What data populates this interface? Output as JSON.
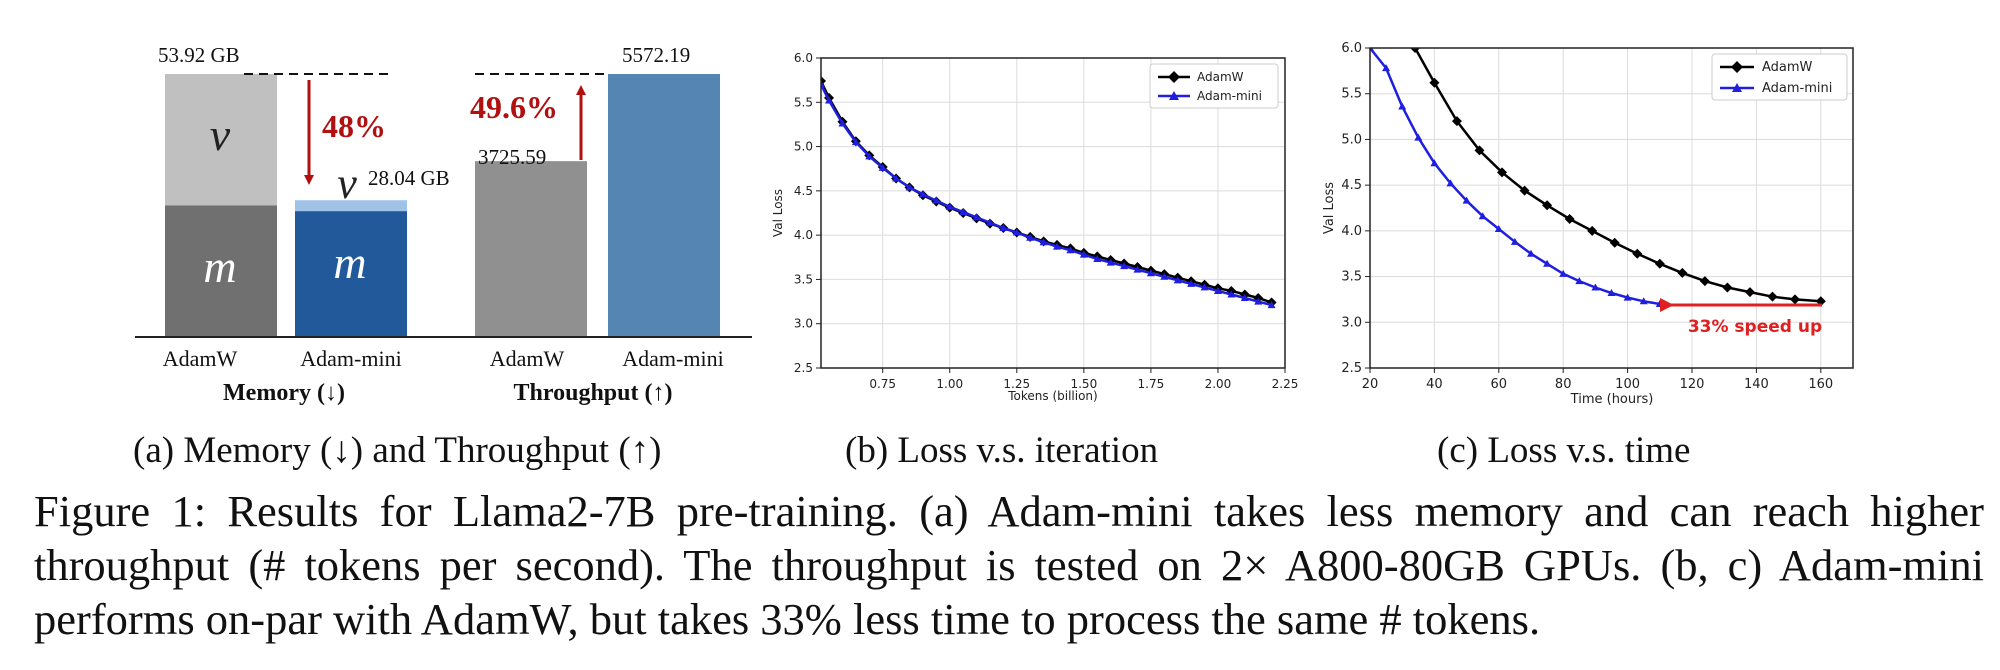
{
  "panel_a": {
    "memory": {
      "adamw_total_label": "53.92 GB",
      "adamini_total_label": "28.04 GB",
      "v_label": "v",
      "m_label": "m",
      "reduction_label": "48%",
      "adamw_value": 53.92,
      "adamini_value": 28.04,
      "adamw_m_fraction": 0.5,
      "adamini_v_fraction": 0.08,
      "group_label": "Memory (↓)"
    },
    "throughput": {
      "adamw_label": "3725.59",
      "adamini_label": "5572.19",
      "adamw_value": 3725.59,
      "adamini_value": 5572.19,
      "increase_label": "49.6%",
      "group_label": "Throughput (↑)"
    },
    "categories": [
      "AdamW",
      "Adam-mini",
      "AdamW",
      "Adam-mini"
    ],
    "colors": {
      "adamw_v": "#c0c0c0",
      "adamw_m": "#707070",
      "adamini_v": "#9fc3e7",
      "adamini_m": "#22599a",
      "adamw_throughput": "#909090",
      "adamini_throughput": "#5585b3",
      "arrow": "#b01010"
    }
  },
  "subcaptions": {
    "a": "(a) Memory (↓) and Throughput (↑)",
    "b": "(b) Loss v.s. iteration",
    "c": "(c) Loss v.s. time"
  },
  "caption": "Figure 1: Results for Llama2-7B pre-training. (a) Adam-mini takes less memory and can reach higher throughput (# tokens per second). The throughput is tested on 2× A800-80GB GPUs. (b, c) Adam-mini performs on-par with AdamW, but takes 33% less time to process the same # tokens.",
  "chart_data": [
    {
      "type": "line",
      "xlabel": "Tokens (billion)",
      "ylabel": "Val Loss",
      "xlim": [
        0.52,
        2.25
      ],
      "ylim": [
        2.5,
        6.0
      ],
      "xticks": [
        "0.75",
        "1.00",
        "1.25",
        "1.50",
        "1.75",
        "2.00",
        "2.25"
      ],
      "yticks": [
        "2.5",
        "3.0",
        "3.5",
        "4.0",
        "4.5",
        "5.0",
        "5.5",
        "6.0"
      ],
      "grid": true,
      "legend": "top-right",
      "series": [
        {
          "name": "AdamW",
          "color": "#000000",
          "marker": "diamond",
          "x": [
            0.52,
            0.55,
            0.6,
            0.65,
            0.7,
            0.75,
            0.8,
            0.85,
            0.9,
            0.95,
            1.0,
            1.05,
            1.1,
            1.15,
            1.2,
            1.25,
            1.3,
            1.35,
            1.4,
            1.45,
            1.5,
            1.55,
            1.6,
            1.65,
            1.7,
            1.75,
            1.8,
            1.85,
            1.9,
            1.95,
            2.0,
            2.05,
            2.1,
            2.15,
            2.2
          ],
          "y": [
            5.74,
            5.55,
            5.28,
            5.06,
            4.9,
            4.77,
            4.64,
            4.54,
            4.45,
            4.38,
            4.31,
            4.25,
            4.19,
            4.13,
            4.08,
            4.03,
            3.98,
            3.93,
            3.89,
            3.85,
            3.8,
            3.76,
            3.72,
            3.68,
            3.64,
            3.6,
            3.56,
            3.52,
            3.48,
            3.44,
            3.4,
            3.37,
            3.33,
            3.29,
            3.24
          ]
        },
        {
          "name": "Adam-mini",
          "color": "#1f1fe0",
          "marker": "triangle",
          "x": [
            0.52,
            0.55,
            0.6,
            0.65,
            0.7,
            0.75,
            0.8,
            0.85,
            0.9,
            0.95,
            1.0,
            1.05,
            1.1,
            1.15,
            1.2,
            1.25,
            1.3,
            1.35,
            1.4,
            1.45,
            1.5,
            1.55,
            1.6,
            1.65,
            1.7,
            1.75,
            1.8,
            1.85,
            1.9,
            1.95,
            2.0,
            2.05,
            2.1,
            2.15,
            2.2
          ],
          "y": [
            5.7,
            5.52,
            5.26,
            5.05,
            4.89,
            4.76,
            4.64,
            4.54,
            4.46,
            4.39,
            4.32,
            4.26,
            4.2,
            4.14,
            4.08,
            4.03,
            3.97,
            3.92,
            3.87,
            3.83,
            3.78,
            3.73,
            3.69,
            3.65,
            3.61,
            3.57,
            3.53,
            3.49,
            3.45,
            3.41,
            3.37,
            3.33,
            3.29,
            3.25,
            3.21
          ]
        }
      ]
    },
    {
      "type": "line",
      "xlabel": "Time (hours)",
      "ylabel": "Val Loss",
      "xlim": [
        20,
        170
      ],
      "ylim": [
        2.5,
        6.0
      ],
      "xticks": [
        "20",
        "40",
        "60",
        "80",
        "100",
        "120",
        "140",
        "160"
      ],
      "yticks": [
        "2.5",
        "3.0",
        "3.5",
        "4.0",
        "4.5",
        "5.0",
        "5.5",
        "6.0"
      ],
      "grid": true,
      "legend": "top-right",
      "annotation": "33% speed up",
      "annotation_color": "#e02020",
      "series": [
        {
          "name": "AdamW",
          "color": "#000000",
          "marker": "diamond",
          "x": [
            34,
            40,
            47,
            54,
            61,
            68,
            75,
            82,
            89,
            96,
            103,
            110,
            117,
            124,
            131,
            138,
            145,
            152,
            160
          ],
          "y": [
            6.0,
            5.62,
            5.2,
            4.88,
            4.64,
            4.44,
            4.28,
            4.13,
            4.0,
            3.87,
            3.75,
            3.64,
            3.54,
            3.45,
            3.38,
            3.33,
            3.28,
            3.25,
            3.23
          ]
        },
        {
          "name": "Adam-mini",
          "color": "#1f1fe0",
          "marker": "triangle",
          "x": [
            20,
            25,
            30,
            35,
            40,
            45,
            50,
            55,
            60,
            65,
            70,
            75,
            80,
            85,
            90,
            95,
            100,
            105,
            110
          ],
          "y": [
            6.0,
            5.78,
            5.36,
            5.02,
            4.74,
            4.52,
            4.33,
            4.16,
            4.02,
            3.88,
            3.75,
            3.64,
            3.53,
            3.45,
            3.38,
            3.32,
            3.27,
            3.23,
            3.2
          ]
        }
      ]
    }
  ]
}
